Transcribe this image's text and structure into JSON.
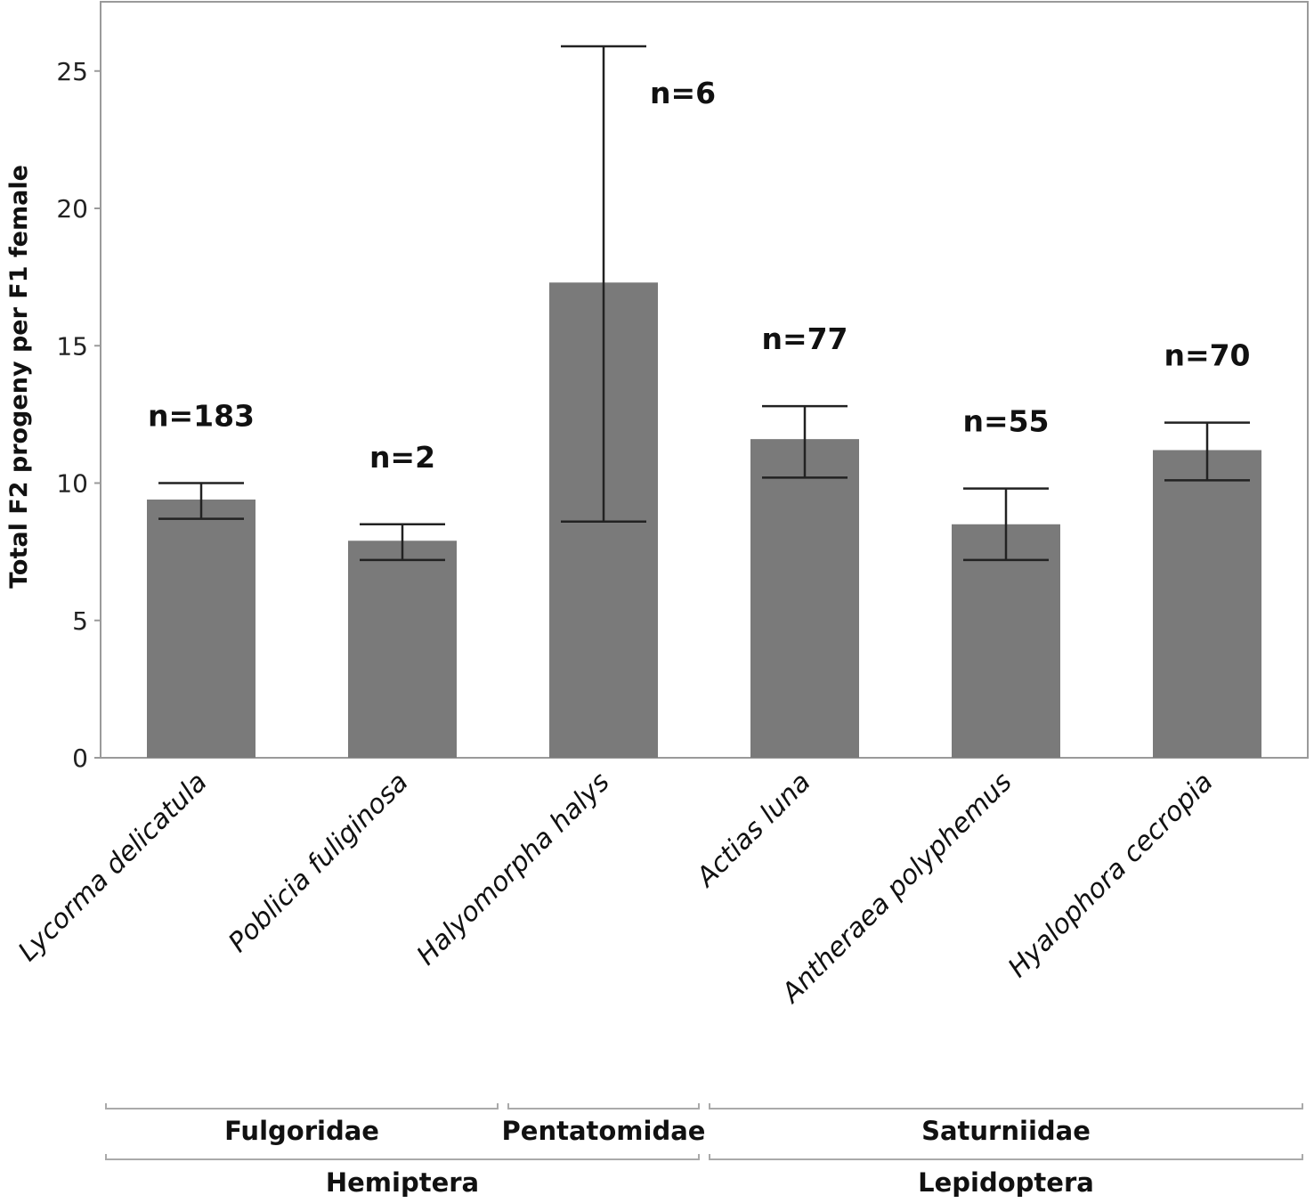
{
  "chart_data": {
    "type": "bar",
    "title": "",
    "xlabel": "",
    "ylabel": "Total F2 progeny per F1 female",
    "ylim": [
      0,
      27.5
    ],
    "yticks": [
      0,
      5,
      10,
      15,
      20,
      25
    ],
    "grid": false,
    "bar_color": "#7a7a7a",
    "categories": [
      "Lycorma delicatula",
      "Poblicia fuliginosa",
      "Halyomorpha halys",
      "Actias luna",
      "Antheraea polyphemus",
      "Hyalophora cecropia"
    ],
    "values": [
      9.4,
      7.9,
      17.3,
      11.6,
      8.5,
      11.2
    ],
    "error_low": [
      8.7,
      7.2,
      8.6,
      10.2,
      7.2,
      10.1
    ],
    "error_high": [
      10.0,
      8.5,
      25.9,
      12.8,
      9.8,
      12.2
    ],
    "annotations": [
      "n=183",
      "n=2",
      "n=6",
      "n=77",
      "n=55",
      "n=70"
    ],
    "families": [
      {
        "name": "Fulgoridae",
        "span": [
          0,
          1
        ]
      },
      {
        "name": "Pentatomidae",
        "span": [
          2,
          2
        ]
      },
      {
        "name": "Saturniidae",
        "span": [
          3,
          5
        ]
      }
    ],
    "orders": [
      {
        "name": "Hemiptera",
        "span": [
          0,
          2
        ]
      },
      {
        "name": "Lepidoptera",
        "span": [
          3,
          5
        ]
      }
    ]
  }
}
